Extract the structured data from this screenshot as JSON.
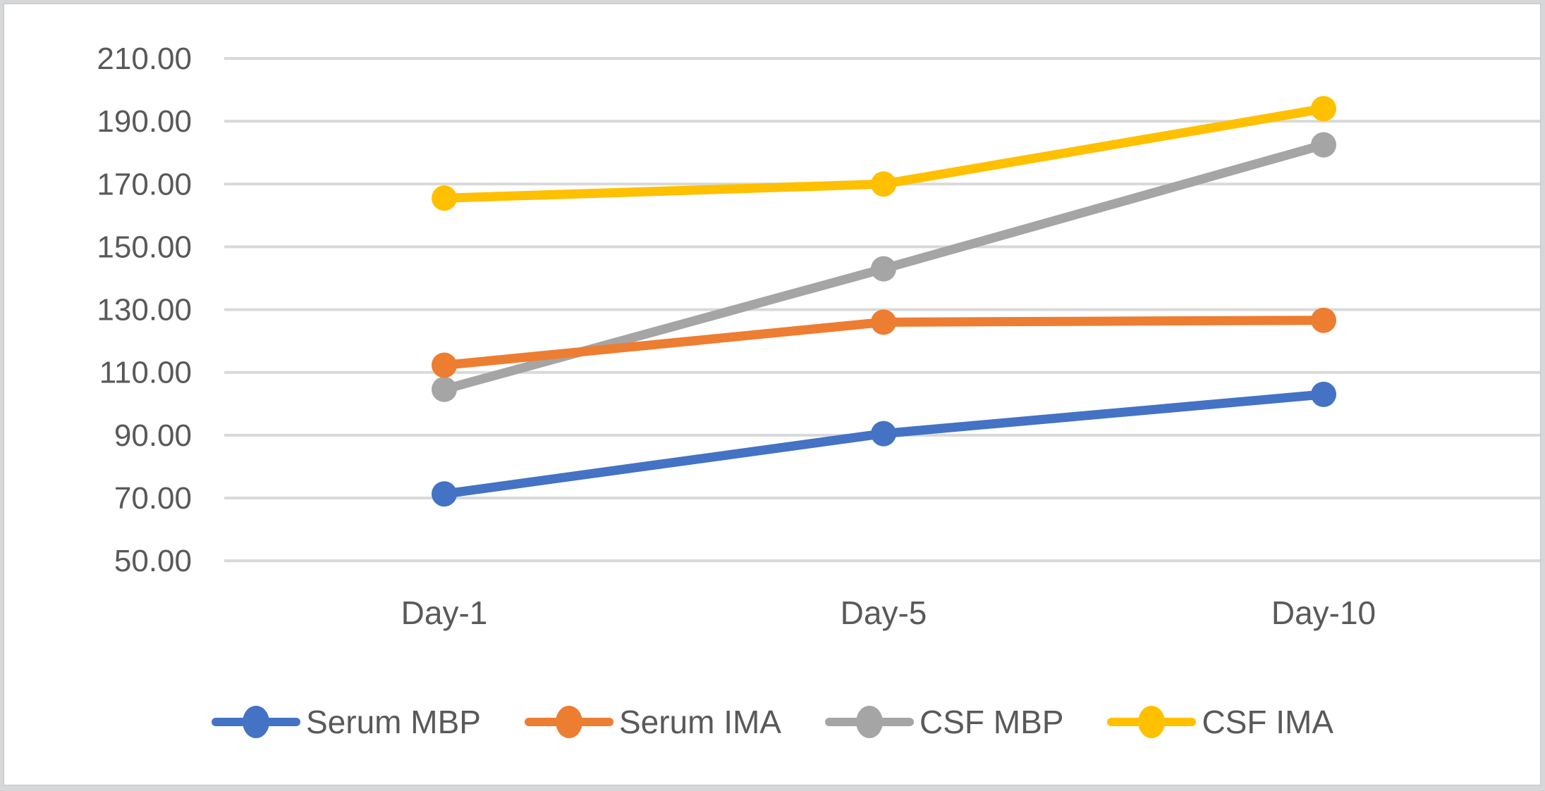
{
  "chart_data": {
    "type": "line",
    "title": "",
    "xlabel": "",
    "ylabel": "",
    "categories": [
      "Day-1",
      "Day-5",
      "Day-10"
    ],
    "series": [
      {
        "name": "Serum MBP",
        "color": "#4472C4",
        "values": [
          71.3,
          90.5,
          103.0
        ]
      },
      {
        "name": "Serum IMA",
        "color": "#ED7D31",
        "values": [
          112.3,
          126.0,
          126.6
        ]
      },
      {
        "name": "CSF MBP",
        "color": "#A5A5A5",
        "values": [
          104.6,
          143.0,
          182.5
        ]
      },
      {
        "name": "CSF IMA",
        "color": "#FFC000",
        "values": [
          165.5,
          170.0,
          194.0
        ]
      }
    ],
    "ylim": [
      50,
      210
    ],
    "ytick_step": 20,
    "ytick_labels": [
      "50.00",
      "70.00",
      "90.00",
      "110.00",
      "130.00",
      "150.00",
      "170.00",
      "190.00",
      "210.00"
    ],
    "grid": "horizontal-only",
    "legend_position": "bottom",
    "legend_entries": [
      "Serum MBP",
      "Serum IMA",
      "CSF MBP",
      "CSF IMA"
    ]
  },
  "colors": {
    "plot_background": "#ffffff",
    "outer_frame": "#d5d7d9",
    "card_border": "#c3c6c8",
    "gridline": "#d9d9d9",
    "axis_text": "#595959"
  }
}
